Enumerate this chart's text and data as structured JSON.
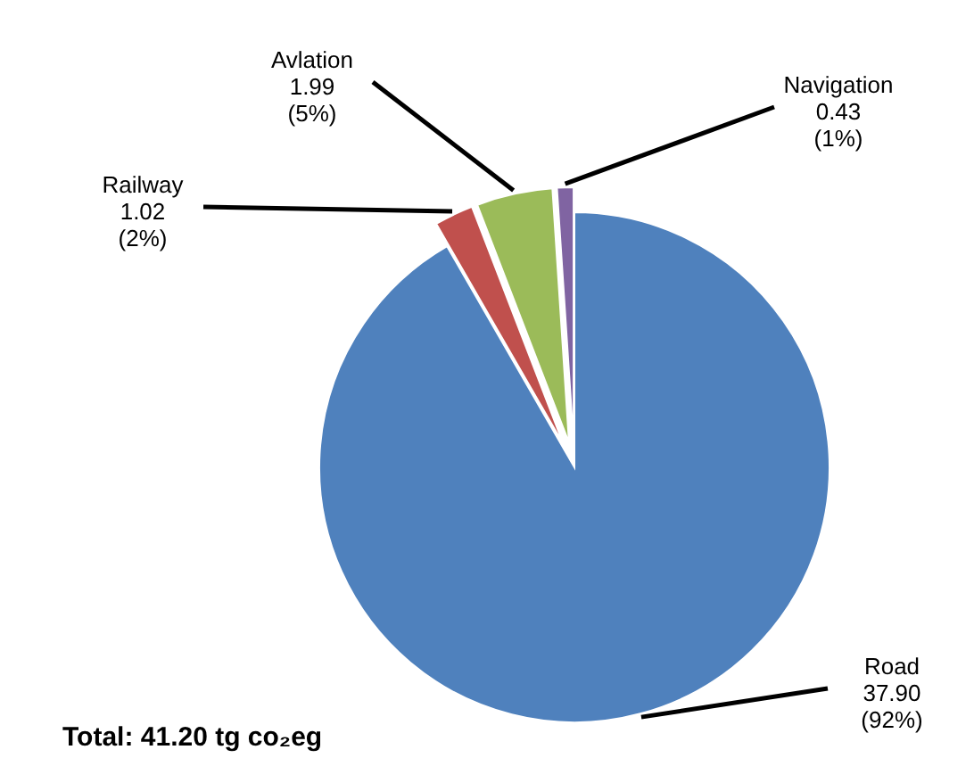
{
  "chart_data": {
    "type": "pie",
    "categories": [
      "Road",
      "Railway",
      "Avlation",
      "Navigation"
    ],
    "values": [
      37.9,
      1.02,
      1.99,
      0.43
    ],
    "colors": [
      "#4f81bd",
      "#c0504d",
      "#9bbb59",
      "#8064a2"
    ],
    "value_labels": [
      "37.90 (92%)",
      "1.02 (2%)",
      "1.99 (5%)",
      "0.43 (1%)"
    ],
    "annotations": [
      "Total: 41.20 tg co₂eg"
    ]
  }
}
